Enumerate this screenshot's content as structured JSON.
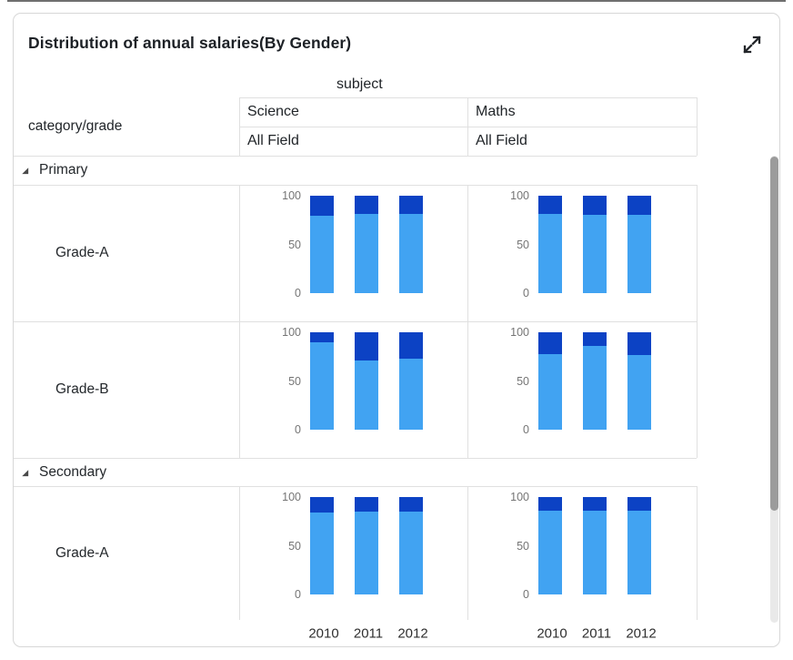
{
  "card": {
    "title": "Distribution of annual salaries(By Gender)"
  },
  "pivot": {
    "column_field_label": "subject",
    "row_field_label": "category/grade",
    "columns": [
      {
        "label": "Science",
        "sub": "All Field"
      },
      {
        "label": "Maths",
        "sub": "All Field"
      }
    ],
    "rows": [
      {
        "type": "group",
        "label": "Primary",
        "expanded": true
      },
      {
        "type": "leaf",
        "label": "Grade-A"
      },
      {
        "type": "leaf",
        "label": "Grade-B"
      },
      {
        "type": "group",
        "label": "Secondary",
        "expanded": true
      },
      {
        "type": "leaf",
        "label": "Grade-A"
      }
    ]
  },
  "chart_data": {
    "type": "bar",
    "stacked": true,
    "title": "Distribution of annual salaries(By Gender)",
    "categories": [
      "2010",
      "2011",
      "2012"
    ],
    "ylim": [
      0,
      100
    ],
    "yticks": [
      100,
      50,
      0
    ],
    "grid": false,
    "legend": "none",
    "colors": {
      "light_blue": "#41a3f2",
      "dark_blue": "#0c42c4"
    },
    "cells": [
      {
        "group": "Primary",
        "row": "Grade-A",
        "column": "Science",
        "light_blue": [
          79,
          81,
          81
        ],
        "dark_blue": [
          21,
          19,
          19
        ]
      },
      {
        "group": "Primary",
        "row": "Grade-A",
        "column": "Maths",
        "light_blue": [
          81,
          80,
          80
        ],
        "dark_blue": [
          19,
          20,
          20
        ]
      },
      {
        "group": "Primary",
        "row": "Grade-B",
        "column": "Science",
        "light_blue": [
          90,
          71,
          73
        ],
        "dark_blue": [
          10,
          29,
          27
        ]
      },
      {
        "group": "Primary",
        "row": "Grade-B",
        "column": "Maths",
        "light_blue": [
          78,
          86,
          77
        ],
        "dark_blue": [
          22,
          14,
          23
        ]
      },
      {
        "group": "Secondary",
        "row": "Grade-A",
        "column": "Science",
        "light_blue": [
          84,
          85,
          85
        ],
        "dark_blue": [
          16,
          15,
          15
        ]
      },
      {
        "group": "Secondary",
        "row": "Grade-A",
        "column": "Maths",
        "light_blue": [
          86,
          86,
          86
        ],
        "dark_blue": [
          14,
          14,
          14
        ]
      }
    ]
  }
}
